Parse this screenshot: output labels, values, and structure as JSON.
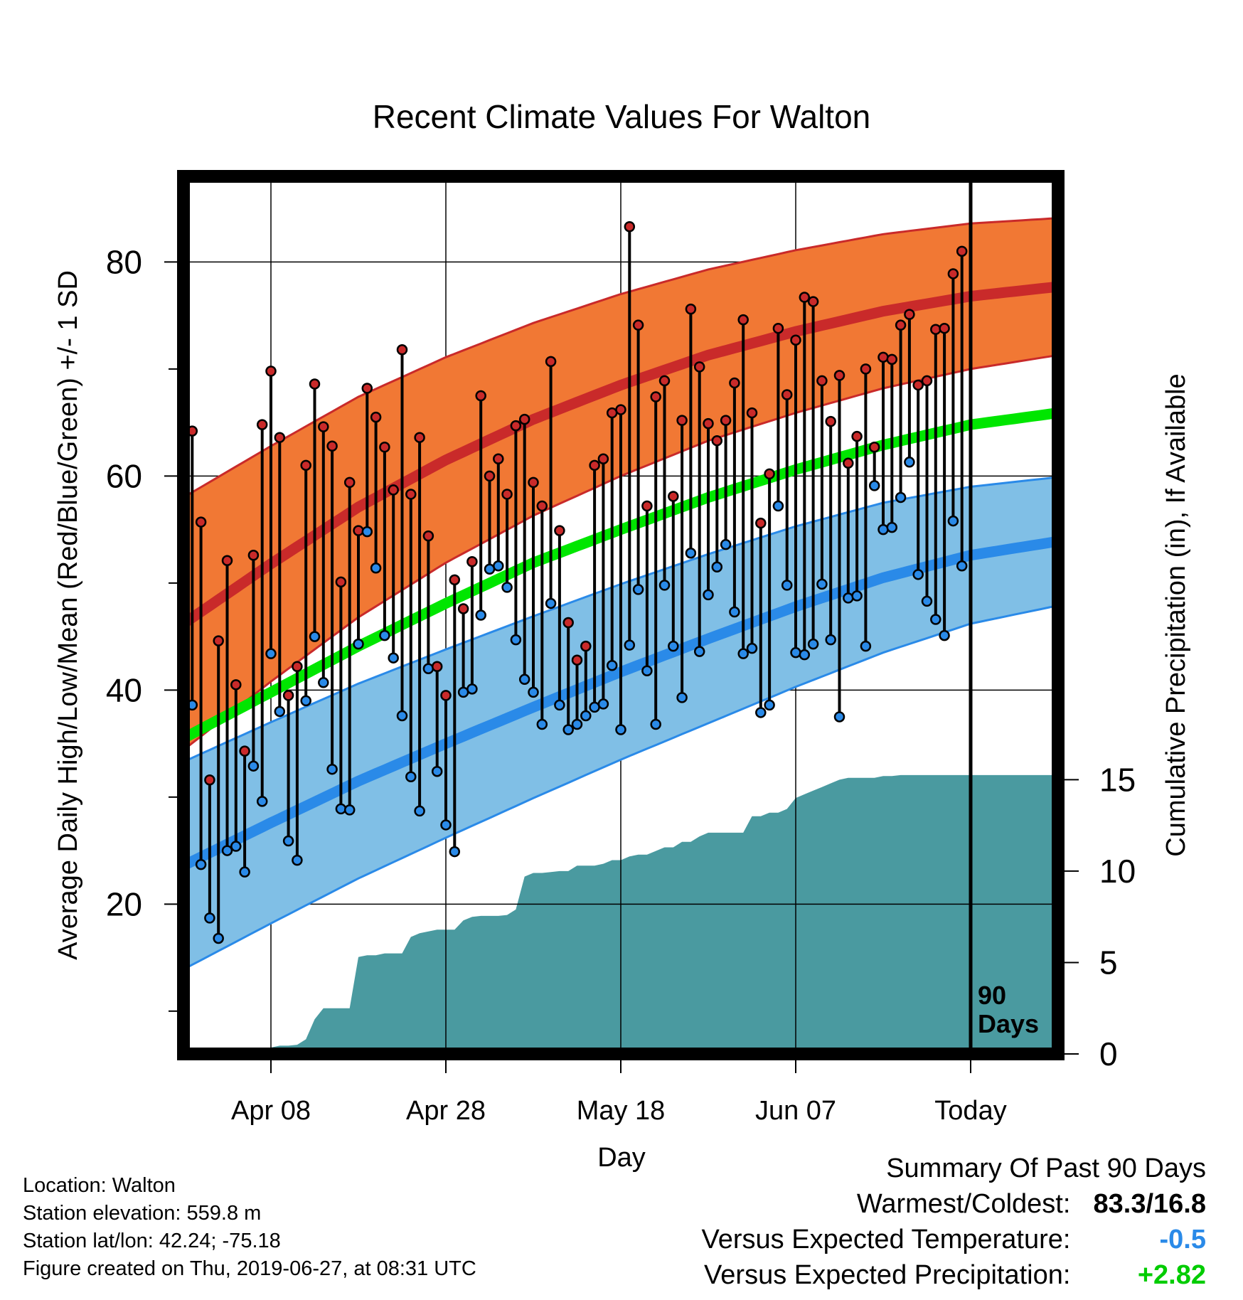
{
  "chart_data": {
    "type": "line",
    "title": "Recent Climate Values For Walton",
    "xlabel": "Day",
    "ylabel": "Average Daily High/Low/Mean (Red/Blue/Green) +/- 1 SD",
    "y2label": "Cumulative Precipitation (in), If Available",
    "x_tick_labels": [
      "Apr 08",
      "Apr 28",
      "May 18",
      "Jun 07",
      "Today"
    ],
    "y_ticks": [
      20,
      40,
      60,
      80
    ],
    "y_minor_ticks": [
      10,
      30,
      50,
      70
    ],
    "y2_ticks": [
      0,
      5,
      10,
      15
    ],
    "ylim": [
      6,
      88
    ],
    "y2lim": [
      0,
      48
    ],
    "xlim": [
      0,
      100
    ],
    "x_ticks_day": [
      10,
      30,
      50,
      70,
      90
    ],
    "today_day": 90,
    "today_label": [
      "90",
      "Days"
    ],
    "colors": {
      "high": "#c92a2a",
      "high_band": "#f17834",
      "low": "#2a8ae8",
      "low_band": "#80bfe6",
      "mean": "#00e600",
      "precip": "#4a9aa0"
    },
    "normals": {
      "days": [
        0,
        10,
        20,
        30,
        40,
        50,
        60,
        70,
        80,
        90,
        100
      ],
      "high_mean": [
        46.2,
        51.8,
        57.1,
        61.5,
        65.3,
        68.5,
        71.3,
        73.5,
        75.4,
        76.8,
        77.7
      ],
      "high_sd": [
        11.8,
        11.0,
        10.3,
        9.6,
        9.0,
        8.5,
        8.0,
        7.6,
        7.2,
        6.8,
        6.4
      ],
      "low_mean": [
        23.6,
        27.6,
        31.5,
        35.0,
        38.4,
        41.7,
        44.8,
        47.8,
        50.5,
        52.6,
        53.9
      ],
      "low_sd": [
        9.7,
        9.4,
        9.1,
        8.8,
        8.5,
        8.2,
        7.9,
        7.5,
        7.0,
        6.4,
        6.0
      ],
      "mean": [
        35.5,
        39.8,
        44.1,
        48.1,
        51.9,
        55.0,
        58.0,
        60.6,
        62.9,
        64.8,
        65.9
      ]
    },
    "daily_high": [
      45.3,
      64.2,
      55.7,
      31.6,
      44.6,
      52.1,
      40.5,
      34.3,
      52.6,
      64.8,
      69.8,
      63.6,
      39.5,
      42.2,
      61.0,
      68.6,
      64.6,
      62.8,
      50.1,
      59.4,
      54.9,
      68.2,
      65.5,
      62.7,
      58.7,
      71.8,
      58.3,
      63.6,
      54.4,
      42.2,
      39.5,
      50.3,
      47.6,
      52.0,
      67.5,
      60.0,
      61.6,
      58.3,
      64.7,
      65.3,
      59.4,
      57.2,
      70.7,
      54.9,
      46.3,
      42.8,
      44.1,
      61.0,
      61.6,
      65.9,
      66.2,
      83.3,
      74.1,
      57.2,
      67.4,
      68.9,
      58.1,
      65.2,
      75.6,
      70.2,
      64.9,
      63.3,
      65.2,
      68.7,
      74.6,
      65.9,
      55.6,
      60.2,
      73.8,
      67.6,
      72.7,
      76.7,
      76.3,
      68.9,
      65.1,
      69.4,
      61.2,
      63.7,
      70.0,
      62.7,
      71.1,
      70.9,
      74.1,
      75.1,
      68.5,
      68.9,
      73.7,
      73.8,
      78.9,
      81.0
    ],
    "daily_low": [
      37.9,
      38.6,
      23.7,
      18.7,
      16.8,
      25.0,
      25.4,
      23.0,
      32.9,
      29.6,
      43.4,
      38.0,
      25.9,
      24.1,
      39.0,
      45.0,
      40.7,
      32.6,
      28.9,
      28.8,
      44.3,
      54.8,
      51.4,
      45.1,
      43.0,
      37.6,
      31.9,
      28.7,
      42.0,
      32.4,
      27.4,
      24.9,
      39.8,
      40.1,
      47.0,
      51.3,
      51.6,
      49.6,
      44.7,
      41.0,
      39.8,
      36.8,
      48.1,
      38.6,
      36.3,
      36.8,
      37.6,
      38.4,
      38.7,
      42.3,
      36.3,
      44.2,
      49.4,
      41.8,
      36.8,
      49.8,
      44.1,
      39.3,
      52.8,
      43.6,
      48.9,
      51.5,
      53.6,
      47.3,
      43.4,
      43.9,
      37.9,
      38.6,
      57.2,
      49.8,
      43.5,
      43.3,
      44.3,
      49.9,
      44.7,
      37.5,
      48.6,
      48.8,
      44.1,
      59.1,
      55.0,
      55.2,
      58.0,
      61.3,
      50.8,
      48.3,
      46.6,
      45.1,
      55.8,
      51.6
    ],
    "cumulative_precip_days": [
      0,
      6,
      7,
      9,
      11,
      12,
      13,
      14,
      15,
      16,
      17,
      18,
      19,
      20,
      21,
      22,
      23,
      24,
      25,
      26,
      27,
      28,
      29,
      30,
      31,
      32,
      33,
      34,
      35,
      36,
      37,
      38,
      39,
      40,
      41,
      42,
      43,
      44,
      45,
      46,
      47,
      48,
      49,
      50,
      51,
      52,
      53,
      54,
      55,
      56,
      57,
      58,
      59,
      60,
      61,
      62,
      63,
      64,
      65,
      66,
      67,
      68,
      69,
      70,
      71,
      72,
      73,
      74,
      75,
      76,
      77,
      78,
      79,
      80,
      81,
      82,
      83,
      84,
      85,
      86,
      87,
      88,
      89,
      90,
      100
    ],
    "cumulative_precip": [
      0.0,
      0.0,
      0.25,
      0.25,
      0.45,
      0.45,
      0.5,
      0.8,
      1.9,
      2.5,
      2.5,
      2.5,
      2.5,
      5.3,
      5.4,
      5.4,
      5.5,
      5.5,
      5.5,
      6.4,
      6.6,
      6.7,
      6.8,
      6.8,
      6.8,
      7.3,
      7.5,
      7.55,
      7.55,
      7.55,
      7.6,
      7.9,
      9.7,
      9.9,
      9.9,
      9.95,
      10.0,
      10.0,
      10.3,
      10.3,
      10.3,
      10.4,
      10.6,
      10.6,
      10.8,
      10.9,
      10.9,
      11.1,
      11.3,
      11.3,
      11.6,
      11.6,
      11.9,
      12.1,
      12.1,
      12.1,
      12.1,
      12.1,
      13.0,
      13.0,
      13.2,
      13.2,
      13.4,
      14.0,
      14.2,
      14.4,
      14.6,
      14.8,
      15.0,
      15.1,
      15.1,
      15.1,
      15.1,
      15.2,
      15.2,
      15.25,
      15.25,
      15.25,
      15.25,
      15.25,
      15.25,
      15.25,
      15.25,
      15.25,
      15.25
    ]
  },
  "footer": {
    "location": "Location: Walton",
    "elevation": "Station elevation: 559.8 m",
    "latlon": "Station lat/lon: 42.24; -75.18",
    "created": "Figure created on Thu, 2019-06-27, at 08:31 UTC"
  },
  "summary": {
    "title": "Summary Of Past 90 Days",
    "warm_cold_label": "Warmest/Coldest:",
    "warm_cold_value": "83.3/16.8",
    "temp_label": "Versus Expected Temperature:",
    "temp_value": "-0.5",
    "temp_color": "#2a8ae8",
    "precip_label": "Versus Expected Precipitation:",
    "precip_value": "+2.82",
    "precip_color": "#00cc00"
  }
}
